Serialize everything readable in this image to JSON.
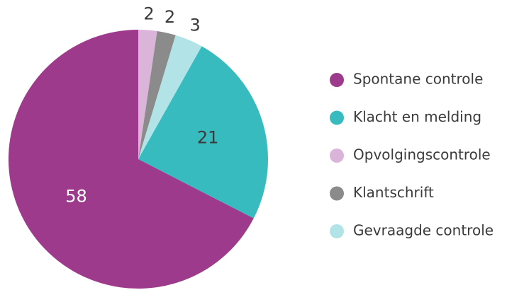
{
  "chart_data": {
    "type": "pie",
    "categories": [
      "Opvolgingscontrole",
      "Klantschrift",
      "Gevraagde controle",
      "Klacht en melding",
      "Spontane controle"
    ],
    "values": [
      2,
      2,
      3,
      21,
      58
    ],
    "colors": [
      "#dbb4d9",
      "#8b8b8b",
      "#b2e4e7",
      "#38bbbf",
      "#9e3a8b"
    ]
  }
}
